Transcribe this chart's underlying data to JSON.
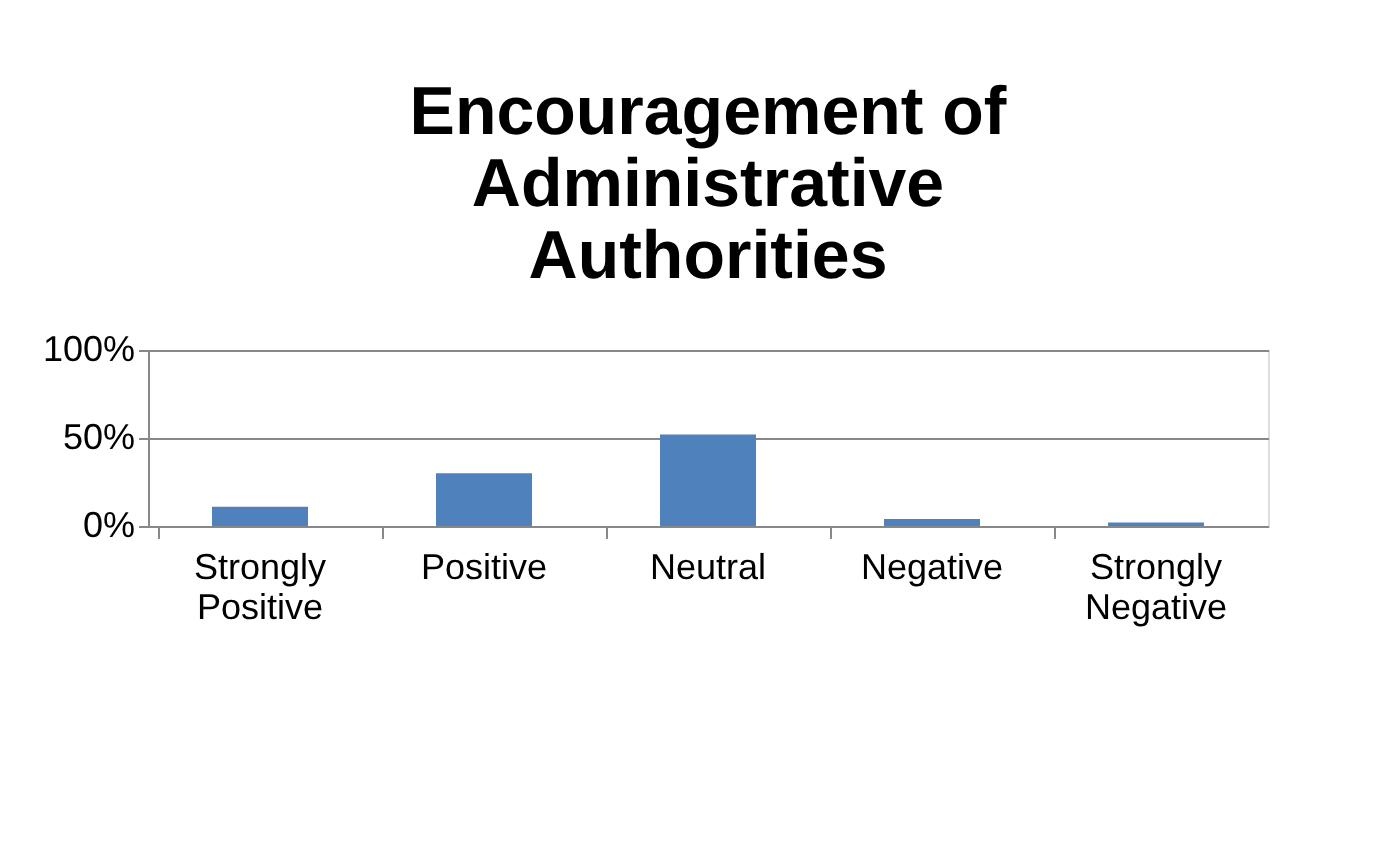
{
  "chart_data": {
    "type": "bar",
    "title": "Encouragement of Administrative Authorities",
    "categories": [
      "Strongly Positive",
      "Positive",
      "Neutral",
      "Negative",
      "Strongly Negative"
    ],
    "values": [
      11,
      30,
      52,
      4,
      2
    ],
    "color": "#4f81bd",
    "ylim": [
      0,
      100
    ],
    "yticks": [
      {
        "value": 0,
        "label": "0%"
      },
      {
        "value": 50,
        "label": "50%"
      },
      {
        "value": 100,
        "label": "100%"
      }
    ],
    "grid": "y"
  }
}
